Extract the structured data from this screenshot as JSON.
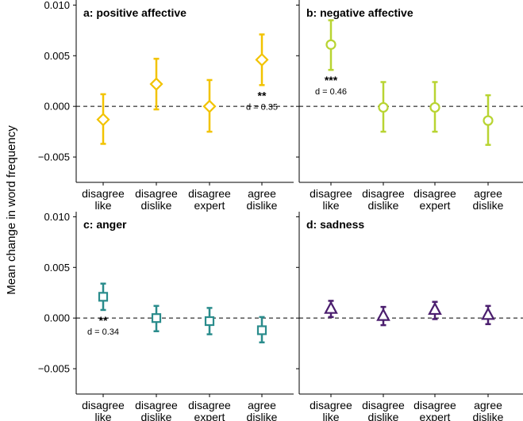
{
  "figure": {
    "ylabel": "Mean change in word frequency"
  },
  "chart_data": [
    {
      "type": "scatter",
      "panel": "a",
      "title": "a: positive affective",
      "categories": [
        "disagree\nlike",
        "disagree\ndislike",
        "disagree\nexpert",
        "agree\ndislike"
      ],
      "marker": "diamond",
      "color": "#F2C300",
      "ylim": [
        -0.0075,
        0.0105
      ],
      "yticks": [
        -0.005,
        0.0,
        0.005,
        0.01
      ],
      "ytick_labels": [
        "-0.005",
        "0.000",
        "0.005",
        "0.010"
      ],
      "reference_line": 0,
      "values": [
        -0.0013,
        0.0022,
        0.0,
        0.0046
      ],
      "lower": [
        -0.0037,
        -0.0003,
        -0.0025,
        0.0021
      ],
      "upper": [
        0.0012,
        0.0047,
        0.0026,
        0.0071
      ],
      "annotations": [
        {
          "index": 3,
          "stars": "**",
          "effect": "d = 0.35"
        }
      ]
    },
    {
      "type": "scatter",
      "panel": "b",
      "title": "b: negative affective",
      "categories": [
        "disagree\nlike",
        "disagree\ndislike",
        "disagree\nexpert",
        "agree\ndislike"
      ],
      "marker": "circle",
      "color": "#B8D432",
      "ylim": [
        -0.0075,
        0.0105
      ],
      "yticks": [
        -0.005,
        0.0,
        0.005,
        0.01
      ],
      "reference_line": 0,
      "values": [
        0.0061,
        -0.0001,
        -0.0001,
        -0.0014
      ],
      "lower": [
        0.0036,
        -0.0025,
        -0.0025,
        -0.0038
      ],
      "upper": [
        0.0085,
        0.0024,
        0.0024,
        0.0011
      ],
      "annotations": [
        {
          "index": 0,
          "stars": "***",
          "effect": "d = 0.46"
        }
      ]
    },
    {
      "type": "scatter",
      "panel": "c",
      "title": "c: anger",
      "categories": [
        "disagree\nlike",
        "disagree\ndislike",
        "disagree\nexpert",
        "agree\ndislike"
      ],
      "marker": "square",
      "color": "#2A8C8C",
      "ylim": [
        -0.0075,
        0.0105
      ],
      "yticks": [
        -0.005,
        0.0,
        0.005,
        0.01
      ],
      "ytick_labels": [
        "-0.005",
        "0.000",
        "0.005",
        "0.010"
      ],
      "reference_line": 0,
      "values": [
        0.0021,
        0.0,
        -0.0003,
        -0.0012
      ],
      "lower": [
        0.0008,
        -0.0013,
        -0.0016,
        -0.0024
      ],
      "upper": [
        0.0034,
        0.0012,
        0.001,
        0.0001
      ],
      "annotations": [
        {
          "index": 0,
          "stars": "**",
          "effect": "d = 0.34"
        }
      ]
    },
    {
      "type": "scatter",
      "panel": "d",
      "title": "d: sadness",
      "categories": [
        "disagree\nlike",
        "disagree\ndislike",
        "disagree\nexpert",
        "agree\ndislike"
      ],
      "marker": "triangle",
      "color": "#4B1E6E",
      "ylim": [
        -0.0075,
        0.0105
      ],
      "yticks": [
        -0.005,
        0.0,
        0.005,
        0.01
      ],
      "reference_line": 0,
      "values": [
        0.0009,
        0.0002,
        0.0008,
        0.0003
      ],
      "lower": [
        0.0001,
        -0.0007,
        -0.0001,
        -0.0006
      ],
      "upper": [
        0.0017,
        0.0011,
        0.0016,
        0.0012
      ],
      "annotations": []
    }
  ]
}
